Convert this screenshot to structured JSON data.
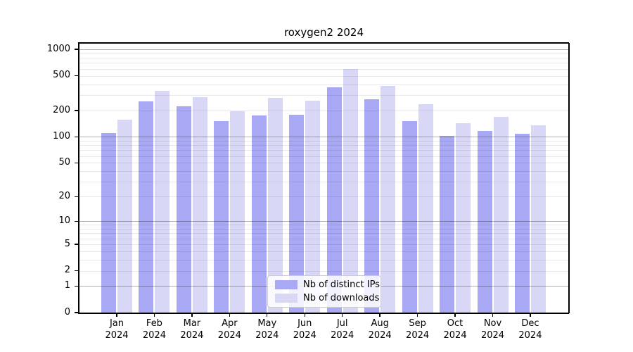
{
  "title": "roxygen2 2024",
  "colors": {
    "distinct_ips": "#a8a8f4",
    "downloads": "#d8d8f6",
    "grid_minor": "rgba(0,0,0,0.085)",
    "grid_major": "rgba(0,0,0,0.30)"
  },
  "legend": {
    "items": [
      {
        "label": "Nb of distinct IPs",
        "color": "#a8a8f4"
      },
      {
        "label": "Nb of downloads",
        "color": "#d8d8f6"
      }
    ],
    "position": "lower center"
  },
  "chart_data": {
    "type": "bar",
    "title": "roxygen2 2024",
    "categories": [
      "Jan 2024",
      "Feb 2024",
      "Mar 2024",
      "Apr 2024",
      "May 2024",
      "Jun 2024",
      "Jul 2024",
      "Aug 2024",
      "Sep 2024",
      "Oct 2024",
      "Nov 2024",
      "Dec 2024"
    ],
    "series": [
      {
        "name": "Nb of distinct IPs",
        "color": "#a8a8f4",
        "values": [
          110,
          255,
          224,
          151,
          176,
          180,
          369,
          270,
          150,
          103,
          116,
          109
        ]
      },
      {
        "name": "Nb of downloads",
        "color": "#d8d8f6",
        "values": [
          158,
          336,
          285,
          196,
          280,
          260,
          596,
          383,
          237,
          144,
          170,
          136
        ]
      }
    ],
    "xlabel": "",
    "ylabel": "",
    "yscale": "log1p",
    "ylim": [
      0,
      1184
    ],
    "yticks": [
      {
        "value": 0,
        "label": "0"
      },
      {
        "value": 1,
        "label": "1"
      },
      {
        "value": 2,
        "label": "2"
      },
      {
        "value": 5,
        "label": "5"
      },
      {
        "value": 10,
        "label": "10"
      },
      {
        "value": 20,
        "label": "20"
      },
      {
        "value": 50,
        "label": "50"
      },
      {
        "value": 100,
        "label": "100"
      },
      {
        "value": 200,
        "label": "200"
      },
      {
        "value": 500,
        "label": "500"
      },
      {
        "value": 1000,
        "label": "1000"
      }
    ],
    "grid": {
      "major": [
        1,
        10,
        100,
        1000
      ],
      "minor": [
        2,
        3,
        4,
        5,
        6,
        7,
        8,
        9,
        20,
        30,
        40,
        50,
        60,
        70,
        80,
        90,
        200,
        300,
        400,
        500,
        600,
        700,
        800,
        900
      ]
    },
    "legend_position": "lower center"
  }
}
